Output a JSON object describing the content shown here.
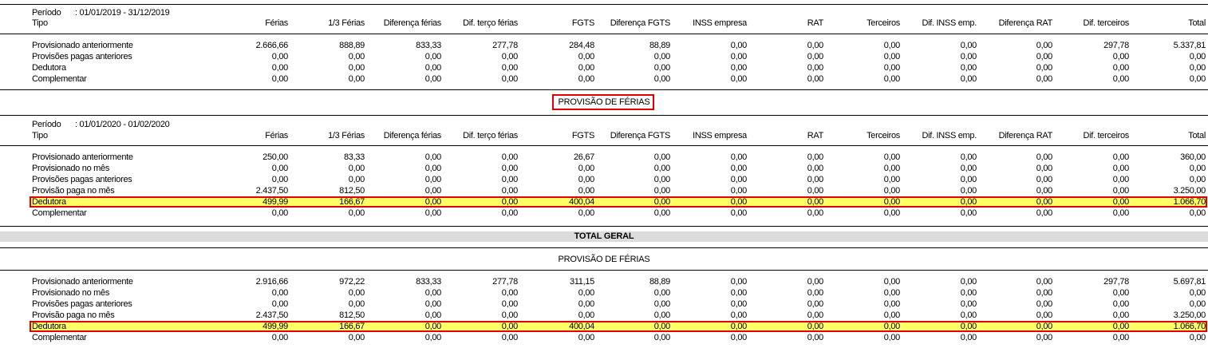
{
  "columns": [
    "Férias",
    "1/3 Férias",
    "Diferença férias",
    "Dif. terço férias",
    "FGTS",
    "Diferença FGTS",
    "INSS empresa",
    "RAT",
    "Terceiros",
    "Dif. INSS emp.",
    "Diferença RAT",
    "Dif. terceiros",
    "Total"
  ],
  "tipo_label": "Tipo",
  "periodo_label": "Período",
  "section_title": "PROVISÃO DE FÉRIAS",
  "total_geral_label": "TOTAL GERAL",
  "highlight_color": "#ffff66",
  "highlight_border": "#e00000",
  "sections": [
    {
      "periodo": ": 01/01/2019 - 31/12/2019",
      "rows": [
        {
          "label": "Provisionado anteriormente",
          "values": [
            "2.666,66",
            "888,89",
            "833,33",
            "277,78",
            "284,48",
            "88,89",
            "0,00",
            "0,00",
            "0,00",
            "0,00",
            "0,00",
            "297,78",
            "5.337,81"
          ]
        },
        {
          "label": "Provisões pagas anteriores",
          "values": [
            "0,00",
            "0,00",
            "0,00",
            "0,00",
            "0,00",
            "0,00",
            "0,00",
            "0,00",
            "0,00",
            "0,00",
            "0,00",
            "0,00",
            "0,00"
          ]
        },
        {
          "label": "Dedutora",
          "values": [
            "0,00",
            "0,00",
            "0,00",
            "0,00",
            "0,00",
            "0,00",
            "0,00",
            "0,00",
            "0,00",
            "0,00",
            "0,00",
            "0,00",
            "0,00"
          ]
        },
        {
          "label": "Complementar",
          "values": [
            "0,00",
            "0,00",
            "0,00",
            "0,00",
            "0,00",
            "0,00",
            "0,00",
            "0,00",
            "0,00",
            "0,00",
            "0,00",
            "0,00",
            "0,00"
          ]
        }
      ]
    },
    {
      "periodo": ": 01/01/2020 - 01/02/2020",
      "rows": [
        {
          "label": "Provisionado anteriormente",
          "values": [
            "250,00",
            "83,33",
            "0,00",
            "0,00",
            "26,67",
            "0,00",
            "0,00",
            "0,00",
            "0,00",
            "0,00",
            "0,00",
            "0,00",
            "360,00"
          ]
        },
        {
          "label": "Provisionado no mês",
          "values": [
            "0,00",
            "0,00",
            "0,00",
            "0,00",
            "0,00",
            "0,00",
            "0,00",
            "0,00",
            "0,00",
            "0,00",
            "0,00",
            "0,00",
            "0,00"
          ]
        },
        {
          "label": "Provisões pagas anteriores",
          "values": [
            "0,00",
            "0,00",
            "0,00",
            "0,00",
            "0,00",
            "0,00",
            "0,00",
            "0,00",
            "0,00",
            "0,00",
            "0,00",
            "0,00",
            "0,00"
          ]
        },
        {
          "label": "Provisão paga no mês",
          "values": [
            "2.437,50",
            "812,50",
            "0,00",
            "0,00",
            "0,00",
            "0,00",
            "0,00",
            "0,00",
            "0,00",
            "0,00",
            "0,00",
            "0,00",
            "3.250,00"
          ]
        },
        {
          "label": "Dedutora",
          "highlight": true,
          "values": [
            "499,99",
            "166,67",
            "0,00",
            "0,00",
            "400,04",
            "0,00",
            "0,00",
            "0,00",
            "0,00",
            "0,00",
            "0,00",
            "0,00",
            "1.066,70"
          ]
        },
        {
          "label": "Complementar",
          "values": [
            "0,00",
            "0,00",
            "0,00",
            "0,00",
            "0,00",
            "0,00",
            "0,00",
            "0,00",
            "0,00",
            "0,00",
            "0,00",
            "0,00",
            "0,00"
          ]
        }
      ]
    },
    {
      "rows": [
        {
          "label": "Provisionado anteriormente",
          "values": [
            "2.916,66",
            "972,22",
            "833,33",
            "277,78",
            "311,15",
            "88,89",
            "0,00",
            "0,00",
            "0,00",
            "0,00",
            "0,00",
            "297,78",
            "5.697,81"
          ]
        },
        {
          "label": "Provisionado no mês",
          "values": [
            "0,00",
            "0,00",
            "0,00",
            "0,00",
            "0,00",
            "0,00",
            "0,00",
            "0,00",
            "0,00",
            "0,00",
            "0,00",
            "0,00",
            "0,00"
          ]
        },
        {
          "label": "Provisões pagas anteriores",
          "values": [
            "0,00",
            "0,00",
            "0,00",
            "0,00",
            "0,00",
            "0,00",
            "0,00",
            "0,00",
            "0,00",
            "0,00",
            "0,00",
            "0,00",
            "0,00"
          ]
        },
        {
          "label": "Provisão paga no mês",
          "values": [
            "2.437,50",
            "812,50",
            "0,00",
            "0,00",
            "0,00",
            "0,00",
            "0,00",
            "0,00",
            "0,00",
            "0,00",
            "0,00",
            "0,00",
            "3.250,00"
          ]
        },
        {
          "label": "Dedutora",
          "highlight": true,
          "values": [
            "499,99",
            "166,67",
            "0,00",
            "0,00",
            "400,04",
            "0,00",
            "0,00",
            "0,00",
            "0,00",
            "0,00",
            "0,00",
            "0,00",
            "1.066,70"
          ]
        },
        {
          "label": "Complementar",
          "values": [
            "0,00",
            "0,00",
            "0,00",
            "0,00",
            "0,00",
            "0,00",
            "0,00",
            "0,00",
            "0,00",
            "0,00",
            "0,00",
            "0,00",
            "0,00"
          ]
        }
      ]
    }
  ]
}
